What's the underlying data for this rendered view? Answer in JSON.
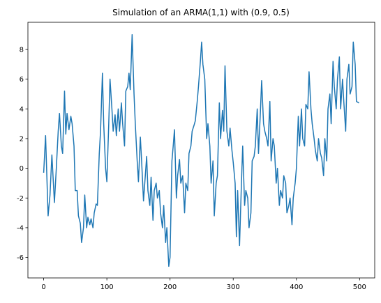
{
  "chart_data": {
    "type": "line",
    "title": "Simulation of an ARMA(1,1) with (0.9, 0.5)",
    "x": [
      0,
      3,
      7,
      10,
      13,
      17,
      20,
      23,
      25,
      28,
      30,
      33,
      35,
      37,
      40,
      43,
      45,
      48,
      50,
      53,
      55,
      58,
      60,
      63,
      65,
      68,
      70,
      73,
      75,
      78,
      80,
      83,
      85,
      88,
      90,
      93,
      95,
      98,
      100,
      103,
      105,
      108,
      110,
      113,
      115,
      118,
      120,
      123,
      125,
      128,
      130,
      133,
      135,
      137,
      140,
      143,
      145,
      148,
      150,
      153,
      155,
      158,
      160,
      163,
      165,
      168,
      170,
      173,
      175,
      178,
      180,
      183,
      185,
      188,
      190,
      193,
      195,
      198,
      200,
      203,
      205,
      207,
      210,
      212,
      215,
      217,
      220,
      223,
      225,
      228,
      230,
      233,
      235,
      238,
      240,
      243,
      245,
      248,
      250,
      252,
      255,
      258,
      260,
      263,
      265,
      268,
      270,
      273,
      275,
      278,
      280,
      283,
      285,
      287,
      290,
      293,
      295,
      298,
      300,
      303,
      305,
      307,
      310,
      313,
      315,
      318,
      320,
      323,
      325,
      328,
      330,
      333,
      335,
      338,
      340,
      343,
      345,
      348,
      350,
      353,
      355,
      358,
      360,
      363,
      365,
      368,
      370,
      373,
      375,
      378,
      380,
      383,
      385,
      388,
      390,
      393,
      395,
      398,
      400,
      403,
      405,
      408,
      410,
      413,
      415,
      418,
      420,
      423,
      425,
      428,
      430,
      433,
      435,
      438,
      440,
      443,
      445,
      448,
      450,
      453,
      455,
      458,
      460,
      463,
      465,
      468,
      470,
      473,
      475,
      478,
      480,
      483,
      485,
      488,
      490,
      493,
      495,
      499
    ],
    "series": [
      {
        "color": "#1f77b4",
        "values": [
          -0.3,
          2.2,
          -3.2,
          -1.8,
          0.9,
          -2.3,
          0,
          2.5,
          3.7,
          1.5,
          1.0,
          5.2,
          2.3,
          3.7,
          2.6,
          3.5,
          3.0,
          1.5,
          -1.5,
          -1.5,
          -3.2,
          -3.7,
          -5.0,
          -4.0,
          -1.8,
          -4.0,
          -3.3,
          -3.8,
          -3.4,
          -4.0,
          -3.0,
          -2.4,
          -2.5,
          1.0,
          2.5,
          6.4,
          3.0,
          0.0,
          -0.9,
          3.0,
          6.0,
          4.0,
          2.5,
          3.6,
          2.2,
          4.0,
          2.5,
          4.4,
          3.0,
          1.5,
          5.2,
          5.5,
          6.4,
          5.3,
          9.0,
          5.0,
          3.0,
          0.5,
          -0.9,
          2.1,
          0.5,
          -2.2,
          -1.0,
          0.8,
          -1.5,
          -2.5,
          -0.6,
          -3.5,
          -1.5,
          -1.0,
          -2.0,
          -1.5,
          -3.0,
          -4.0,
          -2.5,
          -5.0,
          -4.0,
          -6.6,
          -6.0,
          0.5,
          1.5,
          2.6,
          -2.0,
          -0.5,
          0.6,
          -1.0,
          -0.5,
          -3.0,
          -1.0,
          -1.5,
          1.0,
          1.5,
          2.5,
          2.9,
          3.2,
          4.5,
          5.5,
          7.2,
          8.5,
          7.0,
          6.0,
          2.0,
          3.0,
          1.5,
          -1.0,
          0.5,
          -3.2,
          -1.0,
          -0.5,
          4.4,
          2.0,
          3.9,
          2.5,
          6.9,
          2.5,
          1.5,
          2.7,
          1.2,
          0.4,
          -1.0,
          -4.6,
          -1.5,
          -5.2,
          -1.0,
          1.5,
          -2.5,
          -1.5,
          -2.0,
          -4.0,
          -3.0,
          0.5,
          0.8,
          1.5,
          4.0,
          1.0,
          3.8,
          5.9,
          3.0,
          2.5,
          2.0,
          1.5,
          4.5,
          0.5,
          2.0,
          1.5,
          -1.0,
          0.0,
          -2.5,
          -1.5,
          -2.0,
          -0.5,
          -1.0,
          -3.0,
          -2.5,
          -2.0,
          -3.8,
          -2.0,
          -1.0,
          0.0,
          3.5,
          1.5,
          4.0,
          2.0,
          1.5,
          4.3,
          4.0,
          6.5,
          4.0,
          3.0,
          2.0,
          1.2,
          0.5,
          2.0,
          1.0,
          0.7,
          -0.5,
          2.0,
          0.5,
          4.0,
          5.0,
          3.0,
          7.2,
          5.5,
          4.0,
          6.0,
          7.5,
          4.0,
          6.0,
          4.5,
          2.5,
          6.0,
          7.0,
          5.0,
          5.5,
          8.5,
          7.0,
          4.5,
          4.4
        ]
      }
    ],
    "xlim": [
      -24.95,
      523.95
    ],
    "ylim": [
      -7.38,
      9.83
    ],
    "xticks": [
      0,
      100,
      200,
      300,
      400,
      500
    ],
    "yticks": [
      -6,
      -4,
      -2,
      0,
      2,
      4,
      6,
      8
    ]
  }
}
